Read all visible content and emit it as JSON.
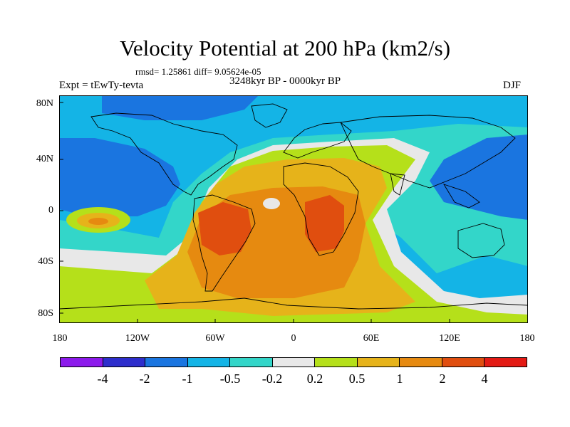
{
  "title": "Velocity Potential at 200 hPa (km2/s)",
  "stats": "rmsd= 1.25861 diff= 9.05624e-05",
  "experiment": "Expt = tEwTy-tevta",
  "period": "3248kyr BP - 0000kyr BP",
  "season": "DJF",
  "y_axis_labels": [
    "80N",
    "40N",
    "0",
    "40S",
    "80S"
  ],
  "x_axis_labels": [
    "180",
    "120W",
    "60W",
    "0",
    "60E",
    "120E",
    "180"
  ],
  "colorbar": {
    "colors": [
      "#8c1aeb",
      "#2e2ecc",
      "#1a75e0",
      "#14b4e6",
      "#33d6c9",
      "#e8e8e8",
      "#b5e01a",
      "#e6b31a",
      "#e68a10",
      "#e04e0f",
      "#e31a14"
    ],
    "labels": [
      "-4",
      "-2",
      "-1",
      "-0.5",
      "-0.2",
      "0.2",
      "0.5",
      "1",
      "2",
      "4"
    ]
  },
  "map_colors": {
    "strong_negative": "#2e2ecc",
    "negative": "#1a75e0",
    "weak_negative": "#14b4e6",
    "slight_negative": "#33d6c9",
    "neutral": "#e8e8e8",
    "slight_positive": "#b5e01a",
    "weak_positive": "#e6b31a",
    "positive": "#e68a10",
    "strong_positive": "#e04e0f"
  }
}
